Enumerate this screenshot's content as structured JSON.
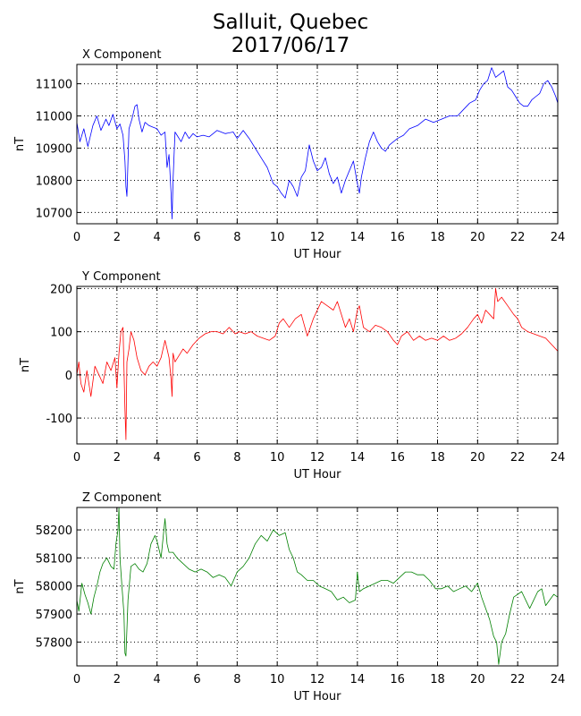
{
  "title_line1": "Salluit, Quebec",
  "title_line2": "2017/06/17",
  "chart_data": [
    {
      "type": "line",
      "title": "X Component",
      "xlabel": "UT Hour",
      "ylabel": "nT",
      "xlim": [
        0,
        24
      ],
      "ylim": [
        10665,
        11160
      ],
      "xticks": [
        0,
        2,
        4,
        6,
        8,
        10,
        12,
        14,
        16,
        18,
        20,
        22,
        24
      ],
      "yticks": [
        10700,
        10800,
        10900,
        11000,
        11100
      ],
      "grid": true,
      "color": "#0000ff",
      "series": [
        {
          "x": [
            0,
            0.15,
            0.35,
            0.55,
            0.8,
            1.0,
            1.2,
            1.45,
            1.6,
            1.8,
            2.0,
            2.15,
            2.3,
            2.4,
            2.45,
            2.5,
            2.6,
            2.75,
            2.9,
            3.0,
            3.1,
            3.25,
            3.4,
            3.6,
            3.8,
            4.0,
            4.2,
            4.4,
            4.5,
            4.6,
            4.7,
            4.75,
            4.8,
            4.9,
            5.0,
            5.2,
            5.4,
            5.6,
            5.8,
            6.0,
            6.3,
            6.6,
            7.0,
            7.4,
            7.8,
            8.0,
            8.3,
            8.6,
            8.9,
            9.2,
            9.5,
            9.8,
            10.0,
            10.2,
            10.4,
            10.6,
            10.8,
            11.0,
            11.2,
            11.4,
            11.6,
            11.8,
            12.0,
            12.2,
            12.4,
            12.6,
            12.8,
            13.0,
            13.2,
            13.4,
            13.6,
            13.8,
            14.0,
            14.1,
            14.2,
            14.4,
            14.6,
            14.8,
            15.0,
            15.2,
            15.4,
            15.6,
            15.8,
            16.0,
            16.3,
            16.6,
            17.0,
            17.4,
            17.8,
            18.2,
            18.6,
            19.0,
            19.3,
            19.6,
            19.9,
            20.1,
            20.3,
            20.5,
            20.7,
            20.9,
            21.1,
            21.3,
            21.5,
            21.7,
            21.9,
            22.1,
            22.3,
            22.5,
            22.7,
            22.9,
            23.1,
            23.3,
            23.5,
            23.7,
            23.9,
            24.0
          ],
          "values": [
            10980,
            10920,
            10960,
            10905,
            10970,
            11000,
            10955,
            10990,
            10970,
            11005,
            10960,
            10975,
            10940,
            10860,
            10780,
            10750,
            10960,
            10990,
            11030,
            11035,
            10990,
            10950,
            10980,
            10970,
            10965,
            10960,
            10940,
            10950,
            10840,
            10880,
            10760,
            10680,
            10800,
            10950,
            10940,
            10920,
            10950,
            10930,
            10945,
            10935,
            10940,
            10935,
            10955,
            10945,
            10950,
            10930,
            10955,
            10930,
            10900,
            10870,
            10840,
            10790,
            10780,
            10760,
            10745,
            10800,
            10780,
            10750,
            10810,
            10830,
            10910,
            10860,
            10830,
            10840,
            10870,
            10820,
            10790,
            10810,
            10760,
            10800,
            10830,
            10860,
            10790,
            10760,
            10810,
            10870,
            10920,
            10950,
            10920,
            10900,
            10890,
            10910,
            10920,
            10930,
            10940,
            10960,
            10970,
            10990,
            10980,
            10990,
            11000,
            11000,
            11020,
            11040,
            11050,
            11080,
            11100,
            11110,
            11150,
            11120,
            11130,
            11140,
            11090,
            11080,
            11060,
            11040,
            11030,
            11030,
            11050,
            11060,
            11070,
            11100,
            11110,
            11090,
            11060,
            11040
          ]
        }
      ]
    },
    {
      "type": "line",
      "title": "Y Component",
      "xlabel": "UT Hour",
      "ylabel": "nT",
      "xlim": [
        0,
        24
      ],
      "ylim": [
        -160,
        205
      ],
      "xticks": [
        0,
        2,
        4,
        6,
        8,
        10,
        12,
        14,
        16,
        18,
        20,
        22,
        24
      ],
      "yticks": [
        -100,
        0,
        100,
        200
      ],
      "grid": true,
      "color": "#ff0000",
      "series": [
        {
          "x": [
            0,
            0.1,
            0.2,
            0.35,
            0.5,
            0.7,
            0.9,
            1.1,
            1.3,
            1.5,
            1.7,
            1.9,
            2.0,
            2.1,
            2.2,
            2.3,
            2.4,
            2.45,
            2.5,
            2.6,
            2.7,
            2.85,
            3.0,
            3.2,
            3.4,
            3.6,
            3.8,
            4.0,
            4.2,
            4.4,
            4.5,
            4.6,
            4.7,
            4.75,
            4.8,
            4.9,
            5.1,
            5.3,
            5.5,
            5.8,
            6.1,
            6.4,
            6.7,
            7.0,
            7.3,
            7.6,
            7.9,
            8.1,
            8.4,
            8.7,
            9.0,
            9.3,
            9.6,
            9.9,
            10.1,
            10.3,
            10.6,
            10.9,
            11.2,
            11.5,
            11.8,
            12.0,
            12.2,
            12.5,
            12.8,
            13.0,
            13.2,
            13.4,
            13.6,
            13.8,
            14.0,
            14.1,
            14.3,
            14.6,
            14.9,
            15.2,
            15.5,
            15.8,
            16.0,
            16.2,
            16.5,
            16.8,
            17.1,
            17.4,
            17.7,
            18.0,
            18.3,
            18.6,
            18.9,
            19.2,
            19.5,
            19.8,
            20.0,
            20.2,
            20.4,
            20.6,
            20.8,
            20.9,
            21.0,
            21.2,
            21.5,
            21.8,
            22.0,
            22.2,
            22.5,
            22.8,
            23.1,
            23.4,
            23.7,
            24.0
          ],
          "values": [
            0,
            30,
            -20,
            -40,
            10,
            -50,
            20,
            0,
            -20,
            30,
            10,
            40,
            -30,
            50,
            100,
            110,
            -80,
            -150,
            30,
            60,
            100,
            80,
            40,
            10,
            0,
            20,
            30,
            20,
            40,
            80,
            60,
            40,
            -10,
            -50,
            50,
            30,
            45,
            60,
            50,
            70,
            85,
            95,
            100,
            100,
            95,
            110,
            95,
            100,
            95,
            100,
            90,
            85,
            80,
            90,
            120,
            130,
            110,
            130,
            140,
            90,
            130,
            150,
            170,
            160,
            150,
            170,
            140,
            110,
            130,
            100,
            150,
            160,
            110,
            100,
            115,
            110,
            100,
            80,
            70,
            90,
            100,
            80,
            90,
            80,
            85,
            80,
            90,
            80,
            85,
            95,
            110,
            130,
            140,
            120,
            150,
            140,
            130,
            200,
            170,
            180,
            160,
            140,
            130,
            110,
            100,
            95,
            90,
            85,
            70,
            55
          ]
        }
      ]
    },
    {
      "type": "line",
      "title": "Z Component",
      "xlabel": "UT Hour",
      "ylabel": "nT",
      "xlim": [
        0,
        24
      ],
      "ylim": [
        57715,
        58280
      ],
      "xticks": [
        0,
        2,
        4,
        6,
        8,
        10,
        12,
        14,
        16,
        18,
        20,
        22,
        24
      ],
      "yticks": [
        57800,
        57900,
        58000,
        58100,
        58200
      ],
      "grid": true,
      "color": "#008000",
      "series": [
        {
          "x": [
            0,
            0.1,
            0.25,
            0.4,
            0.55,
            0.7,
            0.85,
            1.0,
            1.15,
            1.3,
            1.5,
            1.7,
            1.85,
            1.95,
            2.05,
            2.1,
            2.15,
            2.25,
            2.35,
            2.4,
            2.45,
            2.55,
            2.7,
            2.9,
            3.1,
            3.3,
            3.5,
            3.7,
            3.9,
            4.0,
            4.2,
            4.4,
            4.5,
            4.6,
            4.8,
            5.0,
            5.3,
            5.6,
            5.9,
            6.2,
            6.5,
            6.8,
            7.1,
            7.4,
            7.7,
            8.0,
            8.3,
            8.6,
            8.9,
            9.2,
            9.5,
            9.8,
            10.1,
            10.4,
            10.6,
            10.8,
            11.0,
            11.2,
            11.5,
            11.8,
            12.1,
            12.4,
            12.7,
            13.0,
            13.3,
            13.6,
            13.9,
            14.0,
            14.1,
            14.3,
            14.6,
            14.9,
            15.2,
            15.5,
            15.8,
            16.1,
            16.4,
            16.7,
            17.0,
            17.3,
            17.6,
            17.9,
            18.2,
            18.5,
            18.8,
            19.1,
            19.4,
            19.7,
            20.0,
            20.2,
            20.4,
            20.6,
            20.8,
            20.95,
            21.05,
            21.2,
            21.4,
            21.6,
            21.8,
            22.0,
            22.2,
            22.4,
            22.6,
            22.8,
            23.0,
            23.2,
            23.4,
            23.6,
            23.8,
            24.0
          ],
          "values": [
            57950,
            57910,
            58010,
            57970,
            57940,
            57900,
            57960,
            58000,
            58050,
            58080,
            58100,
            58070,
            58060,
            58150,
            58200,
            58280,
            58100,
            58000,
            57900,
            57760,
            57750,
            57950,
            58070,
            58080,
            58060,
            58050,
            58080,
            58150,
            58180,
            58160,
            58100,
            58240,
            58150,
            58120,
            58120,
            58100,
            58080,
            58060,
            58050,
            58060,
            58050,
            58030,
            58040,
            58030,
            58000,
            58050,
            58070,
            58100,
            58150,
            58180,
            58160,
            58200,
            58180,
            58190,
            58130,
            58100,
            58050,
            58040,
            58020,
            58020,
            58000,
            57990,
            57980,
            57950,
            57960,
            57940,
            57950,
            58050,
            57980,
            57990,
            58000,
            58010,
            58020,
            58020,
            58010,
            58030,
            58050,
            58050,
            58040,
            58040,
            58020,
            57990,
            57990,
            58000,
            57980,
            57990,
            58000,
            57980,
            58010,
            57960,
            57920,
            57880,
            57820,
            57800,
            57720,
            57800,
            57830,
            57900,
            57960,
            57970,
            57980,
            57950,
            57920,
            57950,
            57980,
            57990,
            57930,
            57950,
            57970,
            57960
          ]
        }
      ]
    }
  ]
}
